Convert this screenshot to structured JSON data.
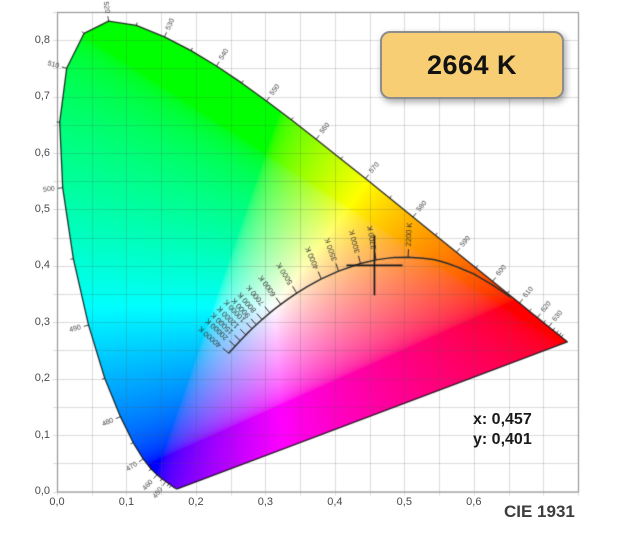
{
  "badge": {
    "label": "2664 K",
    "fill": "#f7ce73",
    "border": "#8d8d8d"
  },
  "readout": {
    "x_label": "x: 0,457",
    "y_label": "y: 0,401"
  },
  "footer": {
    "label": "CIE 1931"
  },
  "axes": {
    "x": {
      "min": 0,
      "max": 0.75,
      "grid_step": 0.05,
      "ticks": [
        {
          "value": 0.0,
          "label": "0,0"
        },
        {
          "value": 0.1,
          "label": "0,1"
        },
        {
          "value": 0.2,
          "label": "0,2"
        },
        {
          "value": 0.3,
          "label": "0,3"
        },
        {
          "value": 0.4,
          "label": "0,4"
        },
        {
          "value": 0.5,
          "label": "0,5"
        },
        {
          "value": 0.6,
          "label": "0,6"
        }
      ]
    },
    "y": {
      "min": 0,
      "max": 0.85,
      "grid_step": 0.05,
      "ticks": [
        {
          "value": 0.0,
          "label": "0,0"
        },
        {
          "value": 0.1,
          "label": "0,1"
        },
        {
          "value": 0.2,
          "label": "0,2"
        },
        {
          "value": 0.3,
          "label": "0,3"
        },
        {
          "value": 0.4,
          "label": "0,4"
        },
        {
          "value": 0.5,
          "label": "0,5"
        },
        {
          "value": 0.6,
          "label": "0,6"
        },
        {
          "value": 0.7,
          "label": "0,7"
        },
        {
          "value": 0.8,
          "label": "0,8"
        }
      ]
    }
  },
  "colors": {
    "plot_border": "#9a9a9a",
    "grid": "rgba(85,85,85,0.20)",
    "locus_outline": "rgba(15,15,15,0.85)",
    "planckian": "#2e2e2e",
    "crosshair": "#1c1c1c",
    "tick_text": "#333333",
    "wavelength_text": "#444444"
  },
  "chart_data": {
    "type": "scatter",
    "subtype": "CIE 1931 xy chromaticity diagram",
    "title": "CIE 1931",
    "xlim": [
      0,
      0.75
    ],
    "ylim": [
      0,
      0.85
    ],
    "grid": true,
    "point": {
      "x": 0.457,
      "y": 0.401,
      "cct_label": "2664 K"
    },
    "spectral_locus": [
      [
        380,
        0.1741,
        0.005
      ],
      [
        385,
        0.174,
        0.005
      ],
      [
        390,
        0.1738,
        0.0049
      ],
      [
        395,
        0.1736,
        0.0049
      ],
      [
        400,
        0.1733,
        0.0048
      ],
      [
        405,
        0.173,
        0.0048
      ],
      [
        410,
        0.1726,
        0.0048
      ],
      [
        415,
        0.1721,
        0.0048
      ],
      [
        420,
        0.1714,
        0.0051
      ],
      [
        425,
        0.1703,
        0.0058
      ],
      [
        430,
        0.1689,
        0.0069
      ],
      [
        435,
        0.1669,
        0.0086
      ],
      [
        440,
        0.1644,
        0.0109
      ],
      [
        445,
        0.1611,
        0.0138
      ],
      [
        450,
        0.1566,
        0.0177
      ],
      [
        455,
        0.151,
        0.0227
      ],
      [
        460,
        0.144,
        0.0297
      ],
      [
        465,
        0.1355,
        0.0399
      ],
      [
        470,
        0.1241,
        0.0578
      ],
      [
        475,
        0.1096,
        0.0868
      ],
      [
        480,
        0.0913,
        0.1327
      ],
      [
        485,
        0.0687,
        0.2007
      ],
      [
        490,
        0.0454,
        0.295
      ],
      [
        495,
        0.0235,
        0.4127
      ],
      [
        500,
        0.0082,
        0.5384
      ],
      [
        505,
        0.0039,
        0.6548
      ],
      [
        510,
        0.0139,
        0.7502
      ],
      [
        515,
        0.0389,
        0.812
      ],
      [
        520,
        0.0743,
        0.8338
      ],
      [
        525,
        0.1142,
        0.8262
      ],
      [
        530,
        0.1547,
        0.8059
      ],
      [
        535,
        0.1929,
        0.7816
      ],
      [
        540,
        0.2296,
        0.7543
      ],
      [
        545,
        0.2658,
        0.7243
      ],
      [
        550,
        0.3016,
        0.6923
      ],
      [
        555,
        0.3373,
        0.6589
      ],
      [
        560,
        0.3731,
        0.6245
      ],
      [
        565,
        0.4087,
        0.5896
      ],
      [
        570,
        0.4441,
        0.5547
      ],
      [
        575,
        0.4788,
        0.5202
      ],
      [
        580,
        0.5125,
        0.4866
      ],
      [
        585,
        0.5448,
        0.4544
      ],
      [
        590,
        0.5752,
        0.4242
      ],
      [
        595,
        0.6029,
        0.3965
      ],
      [
        600,
        0.627,
        0.3725
      ],
      [
        605,
        0.6482,
        0.3514
      ],
      [
        610,
        0.6658,
        0.334
      ],
      [
        615,
        0.6801,
        0.3197
      ],
      [
        620,
        0.6915,
        0.3083
      ],
      [
        625,
        0.7006,
        0.2993
      ],
      [
        630,
        0.7079,
        0.292
      ],
      [
        635,
        0.714,
        0.2859
      ],
      [
        640,
        0.719,
        0.2809
      ],
      [
        645,
        0.723,
        0.277
      ],
      [
        650,
        0.726,
        0.274
      ],
      [
        655,
        0.7283,
        0.2717
      ],
      [
        660,
        0.73,
        0.27
      ],
      [
        665,
        0.7311,
        0.2689
      ],
      [
        670,
        0.732,
        0.268
      ],
      [
        675,
        0.7327,
        0.2673
      ],
      [
        680,
        0.7334,
        0.2666
      ],
      [
        685,
        0.734,
        0.266
      ],
      [
        690,
        0.7344,
        0.2656
      ],
      [
        695,
        0.7346,
        0.2654
      ],
      [
        700,
        0.7347,
        0.2653
      ]
    ],
    "wavelength_labels": [
      450,
      460,
      470,
      480,
      490,
      500,
      510,
      520,
      530,
      540,
      550,
      560,
      570,
      580,
      590,
      600,
      610,
      620,
      630
    ],
    "planckian_locus": [
      [
        1000,
        0.6528,
        0.3444
      ],
      [
        1100,
        0.6387,
        0.3565
      ],
      [
        1200,
        0.625,
        0.3675
      ],
      [
        1300,
        0.6121,
        0.3768
      ],
      [
        1400,
        0.5999,
        0.3858
      ],
      [
        1500,
        0.5857,
        0.3931
      ],
      [
        1600,
        0.574,
        0.3991
      ],
      [
        1700,
        0.5626,
        0.4041
      ],
      [
        1800,
        0.5519,
        0.4083
      ],
      [
        1900,
        0.5417,
        0.4112
      ],
      [
        2000,
        0.5267,
        0.4133
      ],
      [
        2200,
        0.5054,
        0.4152
      ],
      [
        2400,
        0.4857,
        0.4147
      ],
      [
        2500,
        0.477,
        0.4137
      ],
      [
        2700,
        0.4593,
        0.4106
      ],
      [
        3000,
        0.4369,
        0.4041
      ],
      [
        3500,
        0.4053,
        0.3907
      ],
      [
        4000,
        0.3805,
        0.3768
      ],
      [
        4500,
        0.3608,
        0.3636
      ],
      [
        5000,
        0.3451,
        0.3516
      ],
      [
        5500,
        0.3325,
        0.3411
      ],
      [
        6000,
        0.3221,
        0.3318
      ],
      [
        6500,
        0.3135,
        0.3237
      ],
      [
        7000,
        0.3064,
        0.3166
      ],
      [
        7500,
        0.3004,
        0.3103
      ],
      [
        8000,
        0.2952,
        0.3048
      ],
      [
        9000,
        0.2869,
        0.2956
      ],
      [
        10000,
        0.2807,
        0.2884
      ],
      [
        12000,
        0.2718,
        0.2776
      ],
      [
        15000,
        0.2637,
        0.2673
      ],
      [
        20000,
        0.2564,
        0.2576
      ],
      [
        25000,
        0.2525,
        0.2523
      ],
      [
        30000,
        0.25,
        0.2489
      ],
      [
        40000,
        0.2472,
        0.2449
      ]
    ],
    "cct_tick_labels": [
      {
        "t": 2200,
        "label": "2200 K"
      },
      {
        "t": 2700,
        "label": "2700 K"
      },
      {
        "t": 3000,
        "label": "3000 K"
      },
      {
        "t": 3500,
        "label": "3500 K"
      },
      {
        "t": 4000,
        "label": "4000 K"
      },
      {
        "t": 5000,
        "label": "5000 K"
      },
      {
        "t": 6000,
        "label": "6000 K"
      },
      {
        "t": 7000,
        "label": "7000 K"
      },
      {
        "t": 8000,
        "label": "8000 K"
      },
      {
        "t": 9000,
        "label": "9000 K"
      },
      {
        "t": 10000,
        "label": "10000 K"
      },
      {
        "t": 12000,
        "label": "12000 K"
      },
      {
        "t": 15000,
        "label": "15000 K"
      },
      {
        "t": 20000,
        "label": "20000 K"
      },
      {
        "t": 40000,
        "label": "40000 K"
      }
    ]
  }
}
